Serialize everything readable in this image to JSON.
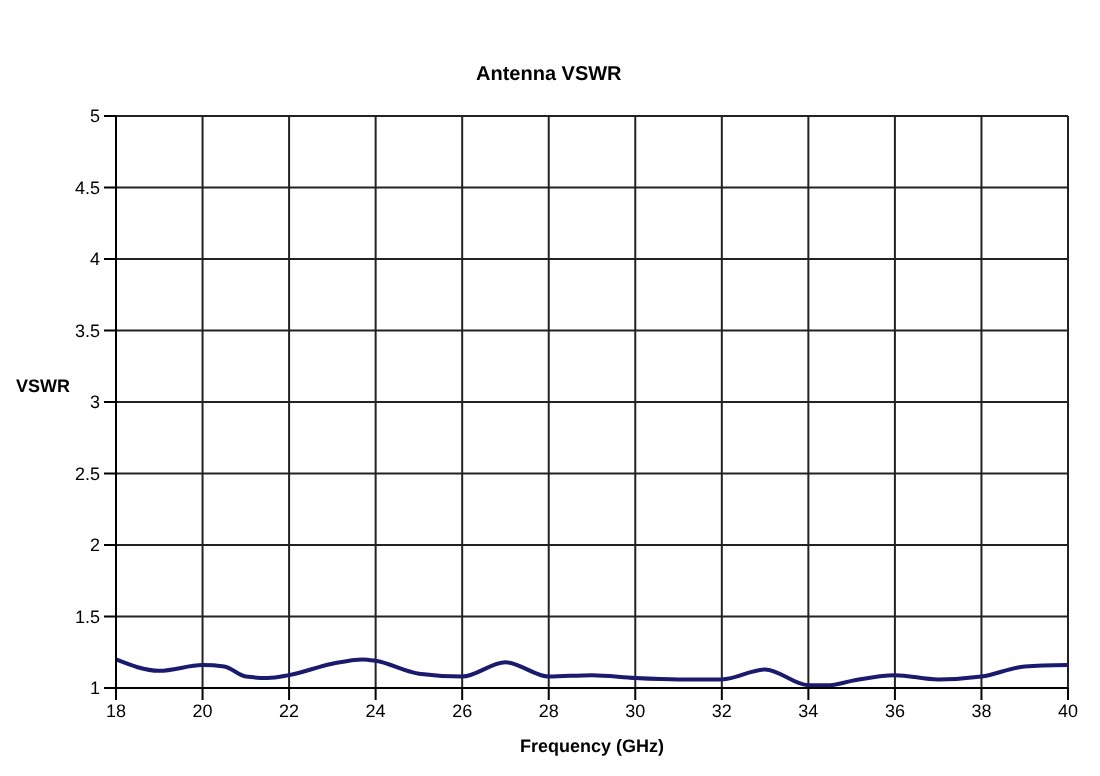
{
  "chart_data": {
    "type": "line",
    "title": "Antenna VSWR",
    "xlabel": "Frequency (GHz)",
    "ylabel": "VSWR",
    "x": [
      18,
      19,
      20,
      20.5,
      21,
      21.5,
      22,
      23,
      23.7,
      24,
      25,
      26,
      27,
      28,
      29,
      30,
      31,
      32,
      33,
      34,
      34.5,
      35,
      36,
      37,
      38,
      39,
      40
    ],
    "series": [
      {
        "color": "#1a1a6e",
        "values": [
          1.2,
          1.12,
          1.16,
          1.15,
          1.08,
          1.07,
          1.09,
          1.17,
          1.2,
          1.19,
          1.1,
          1.08,
          1.18,
          1.08,
          1.09,
          1.07,
          1.06,
          1.06,
          1.13,
          1.02,
          1.02,
          1.05,
          1.09,
          1.06,
          1.08,
          1.15,
          1.16
        ]
      }
    ],
    "xlim": [
      18,
      40
    ],
    "xticks": [
      18,
      20,
      22,
      24,
      26,
      28,
      30,
      32,
      34,
      36,
      38,
      40
    ],
    "ylim": [
      1,
      5
    ],
    "yticks": [
      1,
      1.5,
      2,
      2.5,
      3,
      3.5,
      4,
      4.5,
      5
    ],
    "grid": true,
    "legend": false,
    "marker": "none",
    "line_style": "solid"
  }
}
